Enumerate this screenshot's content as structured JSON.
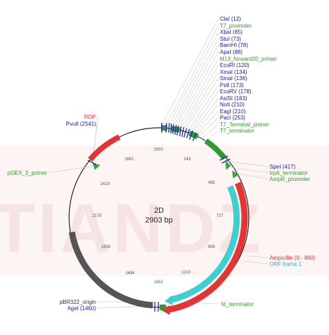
{
  "watermark": "TIANDZ",
  "plasmid": {
    "name": "2D",
    "size_label": "2903 bp",
    "length": 2903
  },
  "colors": {
    "enzyme": "#1a1aa8",
    "promoter": "#2f9a2f",
    "terminator": "#2f9a2f",
    "primer": "#2f9a2f",
    "rop": "#d42a2a",
    "ampicillin": "#e63333",
    "orf": "#3ed0d0",
    "origin": "#555555",
    "label_leader": "#cccccc",
    "tick_text": "#555555"
  },
  "ticks": [
    "2903",
    "243",
    "485",
    "727",
    "969",
    "1210",
    "1452",
    "1694",
    "1936",
    "2178",
    "2419",
    "2661"
  ],
  "enzymes": [
    {
      "label": "ClaI (12)",
      "pos": 12
    },
    {
      "label": "XbaI (65)",
      "pos": 65
    },
    {
      "label": "StuI (73)",
      "pos": 73
    },
    {
      "label": "BamHI (78)",
      "pos": 78
    },
    {
      "label": "ApaI (88)",
      "pos": 88
    },
    {
      "label": "EcoRI (120)",
      "pos": 120
    },
    {
      "label": "XmaI (134)",
      "pos": 134
    },
    {
      "label": "SmaI (136)",
      "pos": 136
    },
    {
      "label": "PstI (173)",
      "pos": 173
    },
    {
      "label": "EcoRV (178)",
      "pos": 178
    },
    {
      "label": "AsiSI (183)",
      "pos": 183
    },
    {
      "label": "NotI (210)",
      "pos": 210
    },
    {
      "label": "EagI (210)",
      "pos": 210
    },
    {
      "label": "PacI (253)",
      "pos": 253
    },
    {
      "label": "SpeI (417)",
      "pos": 417
    },
    {
      "label": "PvuII (2541)",
      "pos": 2541
    },
    {
      "label": "AgeI (1460)",
      "pos": 1460
    }
  ],
  "features_text": {
    "t7_promoter": "T7_promoter",
    "m13_primer": "M13_forward20_primer",
    "t7_terminal_primer": "T7_Terminal_primer",
    "t7_terminator": "T7_terminator",
    "trpa_terminator": "trpA_terminator",
    "ampr_promoter": "AmpR_promoter",
    "ampicillin": "Ampicillin (0 - 860)",
    "orf": "ORF frame 1",
    "fd_terminator": "fd_terminator",
    "pbr322_origin": "pBR322_origin",
    "pgex_primer": "pGEX_3_primer",
    "rop": "ROP"
  }
}
